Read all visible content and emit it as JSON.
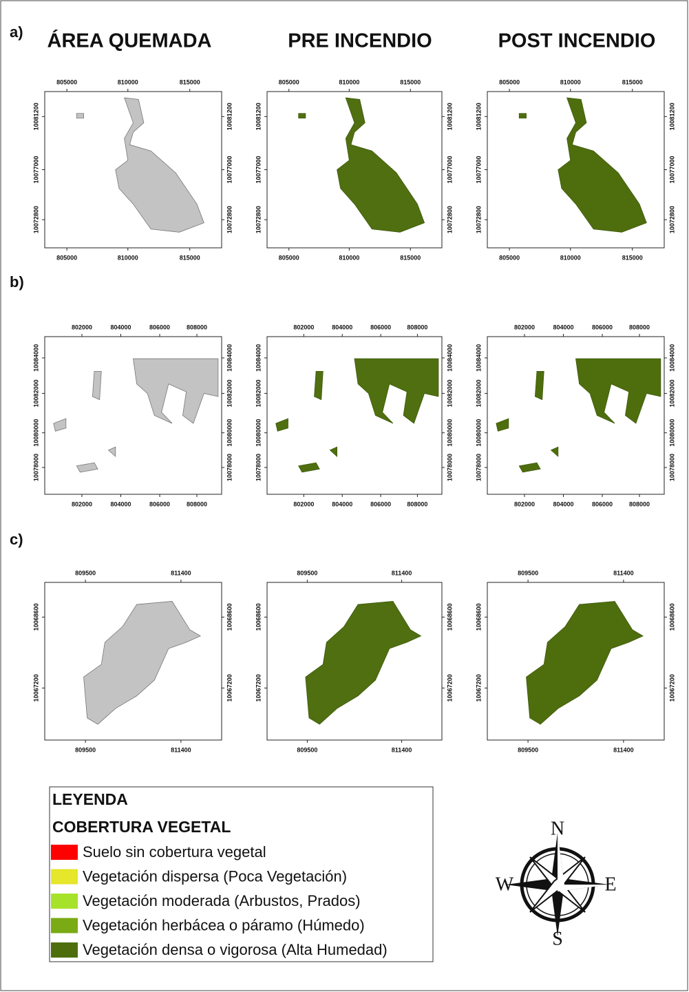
{
  "column_titles": [
    "ÁREA QUEMADA",
    "PRE INCENDIO",
    "POST INCENDIO"
  ],
  "rows": [
    {
      "label": "a)",
      "x_ticks": [
        "805000",
        "810000",
        "815000"
      ],
      "y_ticks": [
        "10081200",
        "10077000",
        "10072800"
      ]
    },
    {
      "label": "b)",
      "x_ticks": [
        "802000",
        "804000",
        "806000",
        "808000"
      ],
      "y_ticks": [
        "10084000",
        "10082000",
        "10080000",
        "10078000"
      ]
    },
    {
      "label": "c)",
      "x_ticks": [
        "809500",
        "811400"
      ],
      "y_ticks": [
        "10068600",
        "10067200"
      ]
    }
  ],
  "legend": {
    "title": "LEYENDA",
    "subtitle": "COBERTURA VEGETAL",
    "items": [
      {
        "label": "Suelo sin cobertura vegetal",
        "color": "#ff0000"
      },
      {
        "label": "Vegetación dispersa (Poca Vegetación)",
        "color": "#e6e62a"
      },
      {
        "label": "Vegetación moderada (Arbustos, Prados)",
        "color": "#a6e22a"
      },
      {
        "label": "Vegetación herbácea o páramo (Húmedo)",
        "color": "#7aaa14"
      },
      {
        "label": "Vegetación densa o vigorosa (Alta Humedad)",
        "color": "#4e6e0e"
      }
    ]
  },
  "compass": {
    "n": "N",
    "s": "S",
    "e": "E",
    "w": "W"
  }
}
